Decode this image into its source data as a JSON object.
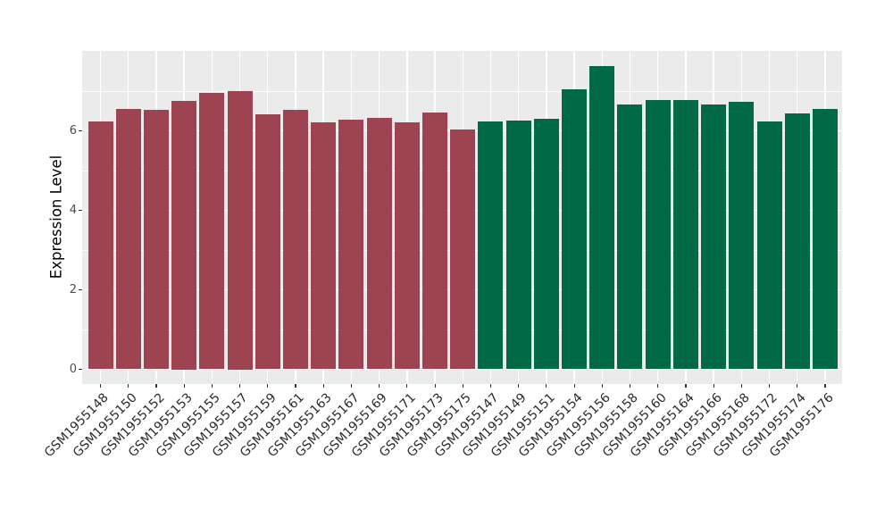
{
  "chart_data": {
    "type": "bar",
    "title": "",
    "xlabel": "",
    "ylabel": "Expression Level",
    "ylim": [
      0,
      8
    ],
    "yticks": [
      0,
      2,
      4,
      6
    ],
    "minor_yticks": [
      1,
      3,
      5,
      7
    ],
    "grid": "on",
    "legend": "none",
    "panel_background": "#EBEBEB",
    "gridline_color": "#FFFFFF",
    "group_colors": {
      "left_group": "#9D4352",
      "right_group": "#026947"
    },
    "categories": [
      "GSM1955148",
      "GSM1955150",
      "GSM1955152",
      "GSM1955153",
      "GSM1955155",
      "GSM1955157",
      "GSM1955159",
      "GSM1955161",
      "GSM1955163",
      "GSM1955167",
      "GSM1955169",
      "GSM1955171",
      "GSM1955173",
      "GSM1955175",
      "GSM1955147",
      "GSM1955149",
      "GSM1955151",
      "GSM1955154",
      "GSM1955156",
      "GSM1955158",
      "GSM1955160",
      "GSM1955164",
      "GSM1955166",
      "GSM1955168",
      "GSM1955172",
      "GSM1955174",
      "GSM1955176"
    ],
    "values": [
      6.24,
      6.54,
      6.52,
      6.75,
      6.96,
      7.0,
      6.42,
      6.52,
      6.22,
      6.28,
      6.33,
      6.22,
      6.46,
      6.03,
      6.24,
      6.26,
      6.31,
      7.05,
      7.62,
      6.66,
      6.77,
      6.77,
      6.66,
      6.72,
      6.23,
      6.44,
      6.55
    ],
    "bar_colors": [
      "#9D4352",
      "#9D4352",
      "#9D4352",
      "#9D4352",
      "#9D4352",
      "#9D4352",
      "#9D4352",
      "#9D4352",
      "#9D4352",
      "#9D4352",
      "#9D4352",
      "#9D4352",
      "#9D4352",
      "#9D4352",
      "#026947",
      "#026947",
      "#026947",
      "#026947",
      "#026947",
      "#026947",
      "#026947",
      "#026947",
      "#026947",
      "#026947",
      "#026947",
      "#026947",
      "#026947"
    ]
  }
}
